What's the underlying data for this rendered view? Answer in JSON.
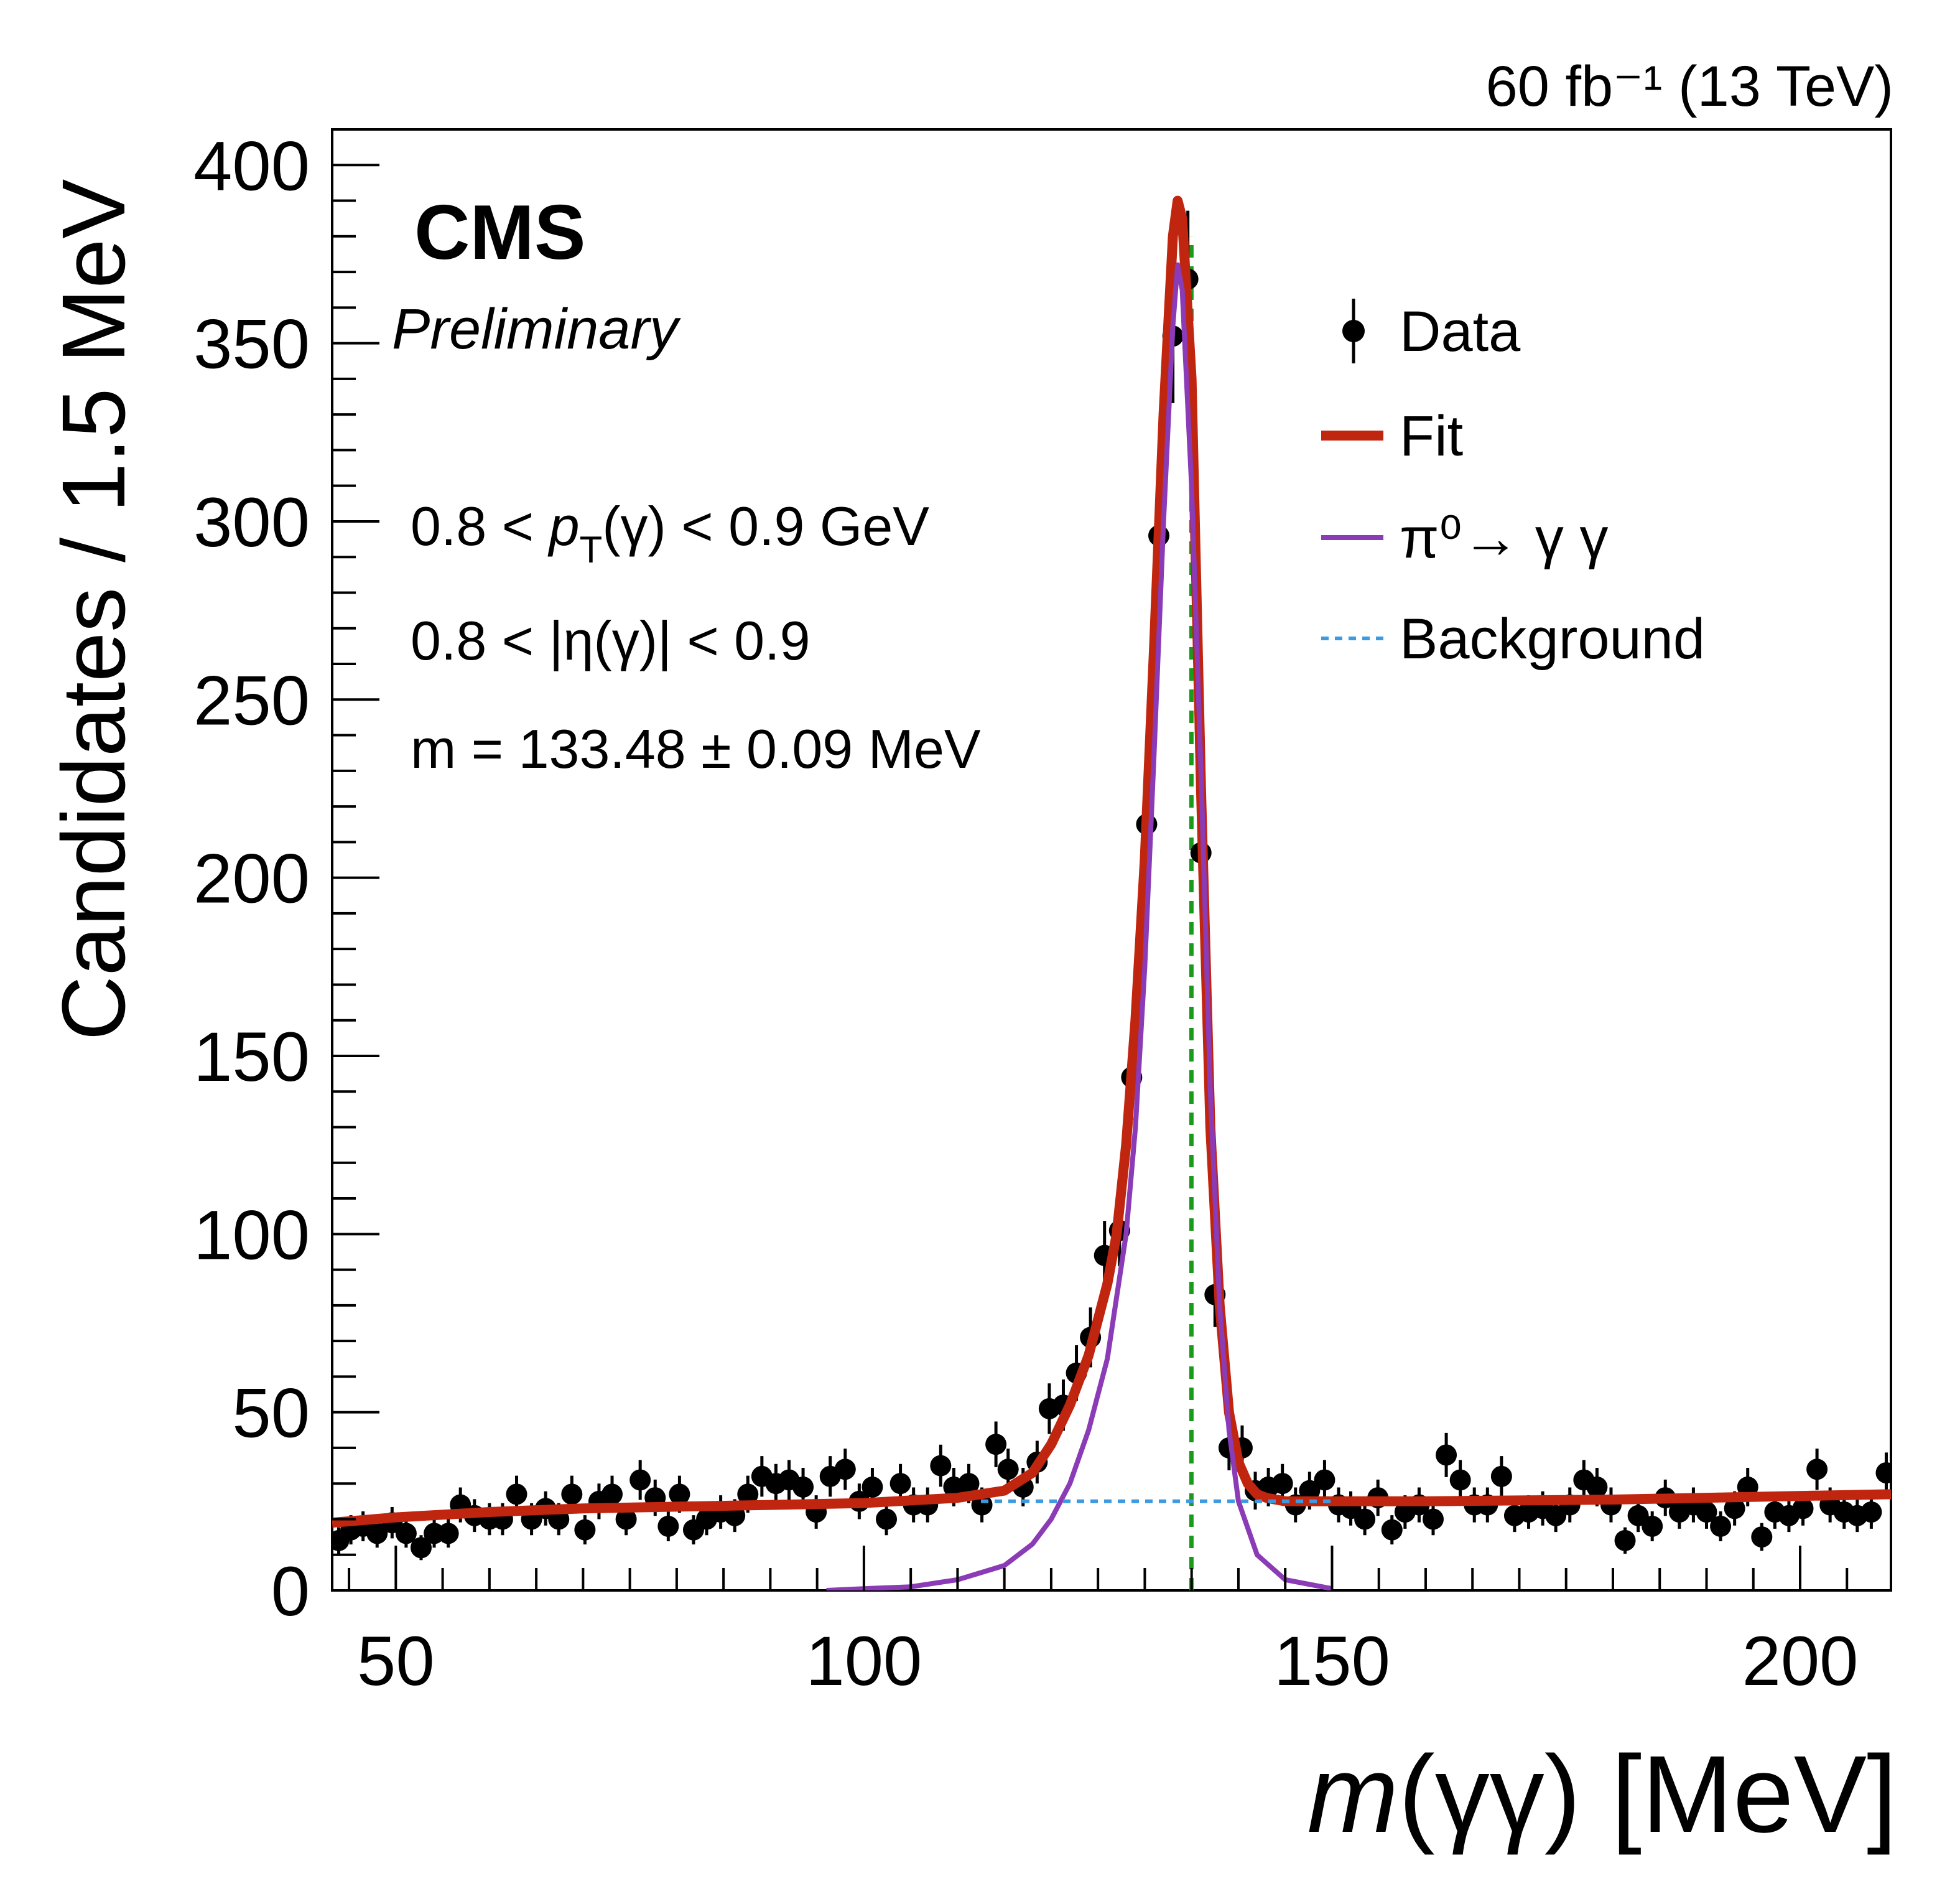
{
  "chart_data": {
    "type": "scatter",
    "lumi": "60 fb⁻¹ (13 TeV)",
    "experiment": "CMS",
    "status": "Preliminary",
    "annotations": [
      [
        "0.8 < ",
        "p",
        "T",
        "(γ) < 0.9 GeV"
      ],
      [
        "0.8 < |η(γ)| < 0.9"
      ],
      [
        "m = 133.48 ± 0.09 MeV"
      ]
    ],
    "x_label": [
      "m",
      "(γγ) [MeV]"
    ],
    "y_label": "Candidates / 1.5 MeV",
    "xlim": [
      43.2,
      209.7
    ],
    "ylim": [
      0,
      410
    ],
    "xticks": [
      50,
      100,
      150,
      200
    ],
    "yticks": [
      0,
      50,
      100,
      150,
      200,
      250,
      300,
      350,
      400
    ],
    "xminorticks": [
      45,
      55,
      60,
      65,
      70,
      75,
      80,
      85,
      90,
      95,
      105,
      110,
      115,
      120,
      125,
      130,
      135,
      140,
      145,
      155,
      160,
      165,
      170,
      175,
      180,
      185,
      190,
      195,
      205
    ],
    "yminorticks": [
      10,
      20,
      30,
      40,
      60,
      70,
      80,
      90,
      110,
      120,
      130,
      140,
      160,
      170,
      180,
      190,
      210,
      220,
      230,
      240,
      260,
      270,
      280,
      290,
      310,
      320,
      330,
      340,
      360,
      370,
      380,
      390
    ],
    "reference_line": {
      "x": 134.98,
      "color": "#1a9a1a"
    },
    "series": [
      {
        "name": "Data",
        "style": "points",
        "color": "#000000",
        "x": [
          43.9,
          45.2,
          46.5,
          48.0,
          49.6,
          51.1,
          52.7,
          54.1,
          55.6,
          56.9,
          58.4,
          60.0,
          61.4,
          62.9,
          64.5,
          66.0,
          67.4,
          68.8,
          70.2,
          71.7,
          73.1,
          74.6,
          76.1,
          77.7,
          79.1,
          80.3,
          81.8,
          83.2,
          84.7,
          86.2,
          87.6,
          89.1,
          90.6,
          92.0,
          93.5,
          94.9,
          96.4,
          98.0,
          99.5,
          100.9,
          102.4,
          103.9,
          105.3,
          106.8,
          108.2,
          109.6,
          111.2,
          112.6,
          114.1,
          115.4,
          117.0,
          118.5,
          119.8,
          121.3,
          122.7,
          124.2,
          125.7,
          127.3,
          128.6,
          130.2,
          131.5,
          133.0,
          134.6,
          136.0,
          137.5,
          139.0,
          140.4,
          141.8,
          143.2,
          144.7,
          146.1,
          147.6,
          149.2,
          150.7,
          152.0,
          153.5,
          154.9,
          156.4,
          157.8,
          159.3,
          160.8,
          162.2,
          163.7,
          165.2,
          166.6,
          168.1,
          169.5,
          171.0,
          172.5,
          173.9,
          175.4,
          176.9,
          178.3,
          179.8,
          181.3,
          182.7,
          184.2,
          185.6,
          187.1,
          188.6,
          190.0,
          191.5,
          193.0,
          194.4,
          195.9,
          197.3,
          198.8,
          200.3,
          201.8,
          203.2,
          204.7,
          206.1,
          207.6,
          209.2
        ],
        "values": [
          14,
          17,
          18,
          16,
          19,
          16,
          12,
          16,
          16,
          24,
          21,
          20,
          20,
          27,
          20,
          23,
          20,
          27,
          17,
          25,
          27,
          20,
          31,
          26,
          18,
          27,
          17,
          20,
          22,
          21,
          27,
          32,
          30,
          31,
          29,
          22,
          32,
          34,
          25,
          29,
          20,
          30,
          24,
          24,
          35,
          29,
          30,
          24,
          41,
          34,
          29,
          36,
          51,
          52,
          61,
          71,
          94,
          101,
          144,
          215,
          296,
          352,
          368,
          207,
          83,
          40,
          40,
          28,
          29,
          30,
          24,
          28,
          31,
          24,
          23,
          20,
          26,
          17,
          22,
          24,
          20,
          38,
          31,
          24,
          24,
          32,
          21,
          22,
          23,
          21,
          24,
          31,
          29,
          24,
          14,
          21,
          18,
          26,
          22,
          24,
          22,
          18,
          23,
          29,
          15,
          22,
          21,
          23,
          34,
          24,
          22,
          21,
          22,
          33
        ],
        "errors": [
          3.7,
          4.1,
          4.2,
          4,
          4.4,
          4,
          3.5,
          4,
          4,
          4.9,
          4.6,
          4.5,
          4.5,
          5.2,
          4.5,
          4.8,
          4.5,
          5.2,
          4.1,
          5,
          5.2,
          4.5,
          5.6,
          5.1,
          4.2,
          5.2,
          4.1,
          4.5,
          4.7,
          4.6,
          5.2,
          5.7,
          5.5,
          5.6,
          5.4,
          4.7,
          5.7,
          5.8,
          5,
          5.4,
          4.5,
          5.5,
          4.9,
          4.9,
          5.9,
          5.4,
          5.5,
          4.9,
          6.4,
          5.8,
          5.4,
          6,
          7.1,
          7.2,
          7.8,
          8.4,
          9.7,
          10,
          12,
          14.7,
          17.2,
          18.8,
          19.2,
          14.4,
          9.1,
          6.3,
          6.3,
          5.3,
          5.4,
          5.5,
          4.9,
          5.3,
          5.6,
          4.9,
          4.8,
          4.5,
          5.1,
          4.1,
          4.7,
          4.9,
          4.5,
          6.2,
          5.6,
          4.9,
          4.9,
          5.7,
          4.6,
          4.7,
          4.8,
          4.6,
          4.9,
          5.6,
          5.4,
          4.9,
          3.7,
          4.6,
          4.2,
          5.1,
          4.7,
          4.9,
          4.7,
          4.2,
          4.8,
          5.4,
          3.9,
          4.7,
          4.6,
          4.8,
          5.8,
          4.9,
          4.7,
          4.6,
          4.7,
          5.7
        ]
      },
      {
        "name": "Fit",
        "style": "line",
        "color": "#c0250f",
        "x": [
          43.2,
          50,
          60,
          70,
          80,
          90,
          100,
          110,
          115,
          118,
          120,
          122,
          124,
          126,
          127,
          128,
          129,
          130,
          131,
          132,
          133,
          133.5,
          134,
          135,
          136,
          137,
          138,
          139,
          140,
          141,
          142,
          143,
          145,
          150,
          160,
          180,
          209.7
        ],
        "values": [
          19,
          20.5,
          22,
          23,
          23.5,
          24,
          24.5,
          26,
          28,
          33,
          41,
          52,
          66,
          86,
          100,
          125,
          160,
          205,
          265,
          330,
          380,
          390,
          385,
          340,
          225,
          130,
          80,
          50,
          36,
          30,
          27,
          26,
          25,
          25,
          25,
          25.5,
          27
        ]
      },
      {
        "name": "π⁰→ γ γ",
        "style": "thin",
        "color": "#8a3bb5",
        "x": [
          96,
          100,
          105,
          110,
          115,
          118,
          120,
          122,
          124,
          126,
          128,
          129,
          130,
          131,
          132,
          133,
          133.5,
          134,
          135,
          136,
          137,
          138,
          139,
          140,
          142,
          145,
          150
        ],
        "values": [
          0,
          0.5,
          1,
          3,
          7,
          13,
          20,
          30,
          45,
          65,
          100,
          130,
          175,
          235,
          300,
          355,
          372,
          365,
          310,
          230,
          140,
          80,
          45,
          25,
          10,
          3,
          0.5
        ]
      },
      {
        "name": "Background",
        "style": "dashed",
        "color": "#3d9ae0",
        "x": [
          112.5,
          150
        ],
        "values": [
          25,
          25
        ]
      }
    ]
  }
}
